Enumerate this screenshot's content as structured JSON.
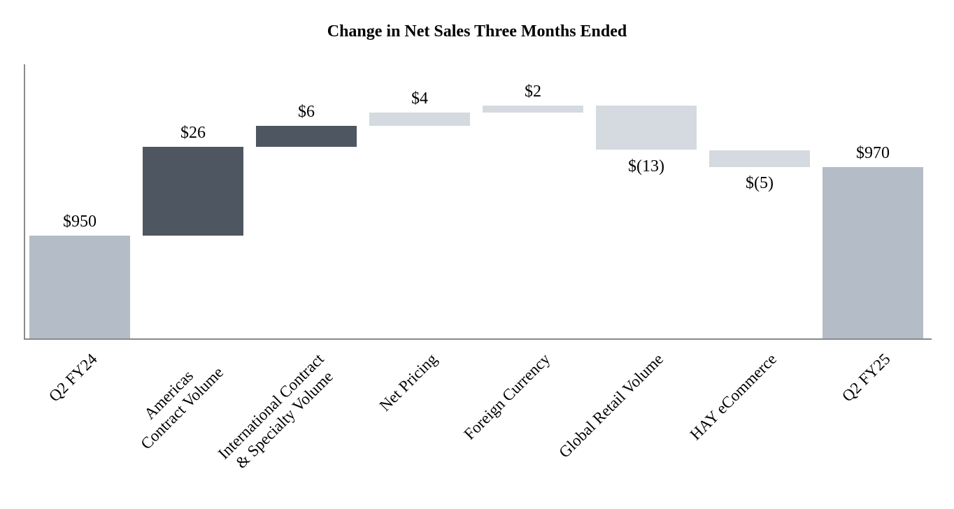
{
  "chart_data": {
    "type": "waterfall",
    "title": "Change in Net Sales Three Months Ended",
    "ylim": [
      920,
      1000
    ],
    "grid": false,
    "y_axis_tick_labels": false,
    "x_label_rotation_deg": 45,
    "categories": [
      "Q2 FY24",
      "Americas Contract Volume",
      "International Contract & Specialty Volume",
      "Net Pricing",
      "Foreign Currency",
      "Global Retail Volume",
      "HAY eCommerce",
      "Q2 FY25"
    ],
    "bars": [
      {
        "category": "Q2 FY24",
        "category_lines": [
          "Q2 FY24"
        ],
        "value": 950,
        "display": "$950",
        "role": "total",
        "value_label_position": "above"
      },
      {
        "category": "Americas Contract Volume",
        "category_lines": [
          "Americas",
          "Contract Volume"
        ],
        "value": 26,
        "display": "$26",
        "role": "increase_dark",
        "value_label_position": "above"
      },
      {
        "category": "International Contract & Specialty Volume",
        "category_lines": [
          "International Contract",
          "& Specialty Volume"
        ],
        "value": 6,
        "display": "$6",
        "role": "increase_dark",
        "value_label_position": "above"
      },
      {
        "category": "Net Pricing",
        "category_lines": [
          "Net Pricing"
        ],
        "value": 4,
        "display": "$4",
        "role": "change_light",
        "value_label_position": "above"
      },
      {
        "category": "Foreign Currency",
        "category_lines": [
          "Foreign Currency"
        ],
        "value": 2,
        "display": "$2",
        "role": "change_light",
        "value_label_position": "above"
      },
      {
        "category": "Global Retail Volume",
        "category_lines": [
          "Global Retail Volume"
        ],
        "value": -13,
        "display": "$(13)",
        "role": "change_light",
        "value_label_position": "below"
      },
      {
        "category": "HAY eCommerce",
        "category_lines": [
          "HAY eCommerce"
        ],
        "value": -5,
        "display": "$(5)",
        "role": "change_light",
        "value_label_position": "below"
      },
      {
        "category": "Q2 FY25",
        "category_lines": [
          "Q2 FY25"
        ],
        "value": 970,
        "display": "$970",
        "role": "total",
        "value_label_position": "above"
      }
    ],
    "cumulative_totals": [
      950,
      976,
      982,
      986,
      988,
      975,
      970,
      970
    ],
    "colors": {
      "total": "#b4bdc7",
      "increase_dark": "#4d5661",
      "change_light": "#d4dadf",
      "axis": "#8a8a8a",
      "text": "#000000",
      "background": "#ffffff"
    }
  }
}
